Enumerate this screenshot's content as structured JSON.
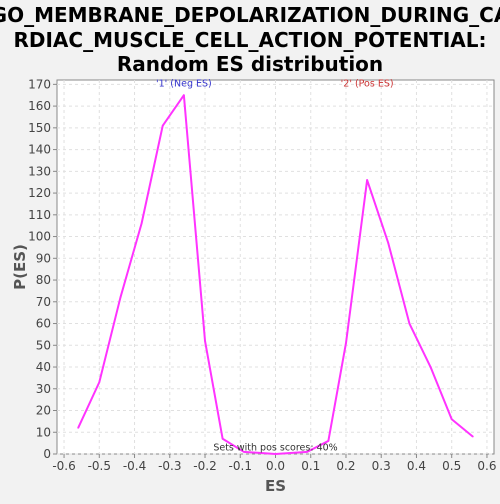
{
  "chart_data": {
    "type": "line",
    "title_lines": [
      "GO_MEMBRANE_DEPOLARIZATION_DURING_CA",
      "RDIAC_MUSCLE_CELL_ACTION_POTENTIAL:",
      "Random ES distribution"
    ],
    "xlabel": "ES",
    "ylabel": "P(ES)",
    "xlim": [
      -0.62,
      0.62
    ],
    "ylim": [
      0,
      172
    ],
    "xticks": [
      -0.6,
      -0.5,
      -0.4,
      -0.3,
      -0.2,
      -0.1,
      0.0,
      0.1,
      0.2,
      0.3,
      0.4,
      0.5,
      0.6
    ],
    "xtick_labels": [
      "-0.6",
      "-0.5",
      "-0.4",
      "-0.3",
      "-0.2",
      "-0.1",
      "0.0",
      "0.1",
      "0.2",
      "0.3",
      "0.4",
      "0.5",
      "0.6"
    ],
    "yticks": [
      0,
      10,
      20,
      30,
      40,
      50,
      60,
      70,
      80,
      90,
      100,
      110,
      120,
      130,
      140,
      150,
      160,
      170
    ],
    "grid": true,
    "series": [
      {
        "color": "#ff33ff",
        "x": [
          -0.56,
          -0.5,
          -0.44,
          -0.38,
          -0.32,
          -0.26,
          -0.2,
          -0.15,
          -0.09,
          0.0,
          0.09,
          0.15,
          0.2,
          0.26,
          0.32,
          0.38,
          0.44,
          0.5,
          0.56
        ],
        "y": [
          12,
          33,
          72,
          106,
          151,
          165,
          52,
          7,
          1,
          0,
          1,
          6,
          51,
          126,
          97,
          60,
          40,
          16,
          8
        ]
      }
    ],
    "annotations": [
      {
        "text": "'1' (Neg ES)",
        "x": -0.26,
        "y": 169,
        "color": "#3333cc"
      },
      {
        "text": "'2' (Pos ES)",
        "x": 0.26,
        "y": 169,
        "color": "#cc3333"
      },
      {
        "text": "Sets with pos scores: 40%",
        "x": 0.0,
        "y": 1.5,
        "color": "#333333"
      }
    ]
  }
}
